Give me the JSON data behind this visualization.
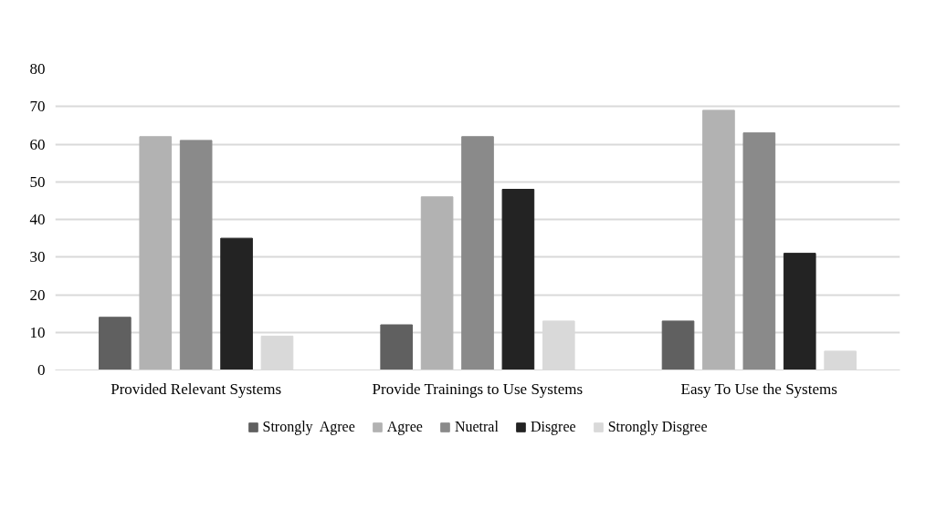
{
  "chart_data": {
    "type": "bar",
    "categories": [
      "Provided Relevant Systems",
      "Provide Trainings to Use Systems",
      "Easy To Use the Systems"
    ],
    "series": [
      {
        "name": "Strongly  Agree",
        "color": "#606060",
        "values": [
          14,
          12,
          13
        ]
      },
      {
        "name": "Agree",
        "color": "#b2b2b2",
        "values": [
          62,
          46,
          69
        ]
      },
      {
        "name": "Nuetral",
        "color": "#8a8a8a",
        "values": [
          61,
          62,
          63
        ]
      },
      {
        "name": "Disgree",
        "color": "#232323",
        "values": [
          35,
          48,
          31
        ]
      },
      {
        "name": "Strongly Disgree",
        "color": "#d9d9d9",
        "values": [
          9,
          13,
          5
        ]
      }
    ],
    "ylim": [
      0,
      80
    ],
    "yticks": [
      0,
      10,
      20,
      30,
      40,
      50,
      60,
      70,
      80
    ],
    "grid": "y",
    "legend": "bottom"
  }
}
